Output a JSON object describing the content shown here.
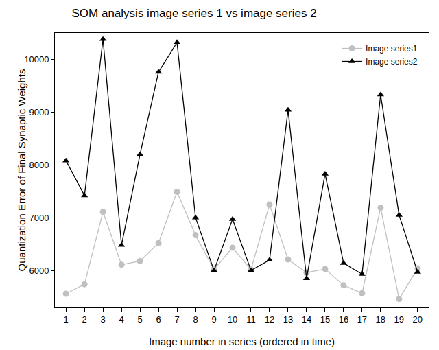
{
  "chart_data": {
    "type": "line",
    "title": "SOM analysis image series 1 vs image series 2",
    "x_label": "Image number in series (ordered in time)",
    "y_label": "Quantization Error of Final Synaptic Weights",
    "x": [
      1,
      2,
      3,
      4,
      5,
      6,
      7,
      8,
      9,
      10,
      11,
      12,
      13,
      14,
      15,
      16,
      17,
      18,
      19,
      20
    ],
    "series": [
      {
        "name": "Image series1",
        "color": "#c0c0c0",
        "marker": "circle",
        "values": [
          5560,
          5740,
          7110,
          6110,
          6180,
          6520,
          7490,
          6670,
          6020,
          6430,
          6020,
          7250,
          6210,
          5960,
          6030,
          5720,
          5570,
          7190,
          5460,
          6040
        ]
      },
      {
        "name": "Image series2",
        "color": "#000000",
        "marker": "triangle-up",
        "values": [
          8080,
          7420,
          10380,
          6480,
          8200,
          9760,
          10320,
          7000,
          6000,
          6970,
          6000,
          6200,
          9040,
          5850,
          7830,
          6140,
          5930,
          9330,
          7050,
          5970
        ]
      }
    ],
    "xlim": [
      0.4,
      20.6
    ],
    "xticks": [
      1,
      2,
      3,
      4,
      5,
      6,
      7,
      8,
      9,
      10,
      11,
      12,
      13,
      14,
      15,
      16,
      17,
      18,
      19,
      20
    ],
    "ylim": [
      5300,
      10500
    ],
    "yticks": [
      6000,
      7000,
      8000,
      9000,
      10000
    ],
    "grid": false,
    "legend": "top right"
  }
}
